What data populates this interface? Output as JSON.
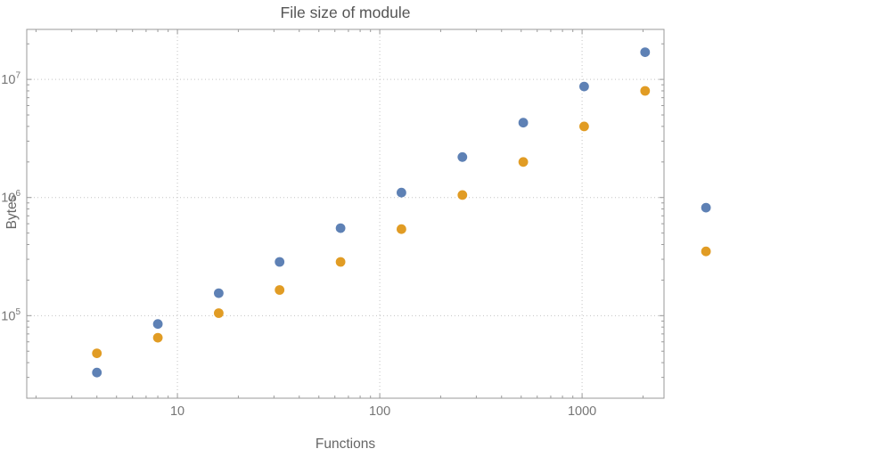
{
  "chart_data": {
    "type": "scatter",
    "title": "File size of module",
    "xlabel": "Functions",
    "ylabel": "Bytes",
    "x_scale": "log",
    "y_scale": "log",
    "xlim": [
      1.8,
      2540
    ],
    "ylim": [
      20000,
      26500000
    ],
    "grid": "dotted-at-decades",
    "legend": "none",
    "x_ticks": [
      {
        "value": 10,
        "label": "10"
      },
      {
        "value": 100,
        "label": "100"
      },
      {
        "value": 1000,
        "label": "1000"
      }
    ],
    "y_ticks": [
      {
        "value": 100000,
        "base": "10",
        "exp": "5"
      },
      {
        "value": 1000000,
        "base": "10",
        "exp": "6"
      },
      {
        "value": 10000000,
        "base": "10",
        "exp": "7"
      }
    ],
    "series": [
      {
        "name": "series-blue",
        "color": "#5e81b5",
        "points": [
          [
            4,
            33000
          ],
          [
            8,
            85000
          ],
          [
            16,
            155000
          ],
          [
            32,
            285000
          ],
          [
            64,
            550000
          ],
          [
            128,
            1100000
          ],
          [
            256,
            2200000
          ],
          [
            512,
            4300000
          ],
          [
            1024,
            8700000
          ],
          [
            2048,
            17000000
          ],
          [
            4096,
            820000
          ]
        ]
      },
      {
        "name": "series-orange",
        "color": "#e19c24",
        "points": [
          [
            4,
            48000
          ],
          [
            8,
            65000
          ],
          [
            16,
            105000
          ],
          [
            32,
            165000
          ],
          [
            64,
            285000
          ],
          [
            128,
            540000
          ],
          [
            256,
            1050000
          ],
          [
            512,
            2000000
          ],
          [
            1024,
            4000000
          ],
          [
            2048,
            8000000
          ],
          [
            4096,
            350000
          ]
        ]
      }
    ]
  },
  "colors": {
    "frame": "#9a9a9a",
    "grid": "#c3c3c3",
    "tick_label": "#767676",
    "title": "#555555",
    "axis_label": "#666666",
    "background": "#ffffff"
  }
}
